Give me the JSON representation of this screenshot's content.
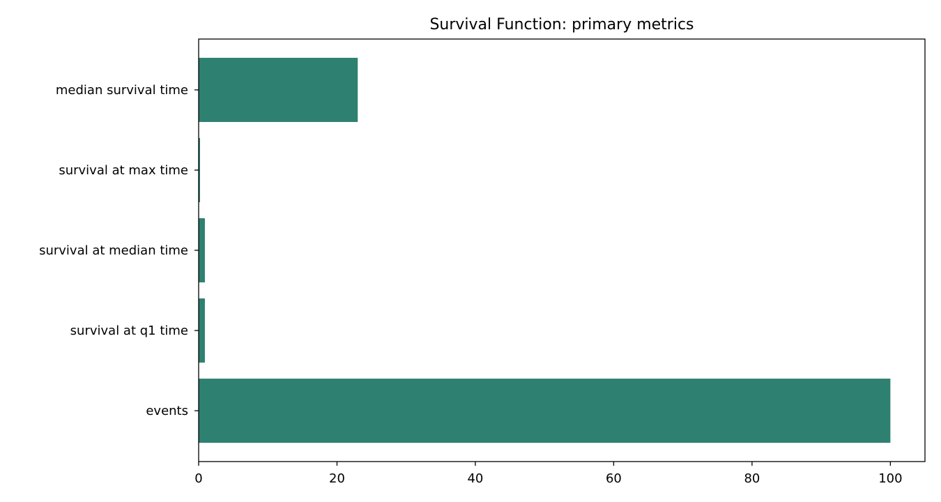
{
  "chart_data": {
    "type": "bar",
    "orientation": "horizontal",
    "title": "Survival Function: primary metrics",
    "xlabel": "",
    "ylabel": "",
    "categories": [
      "median survival time",
      "survival at max time",
      "survival at median time",
      "survival at q1 time",
      "events"
    ],
    "values": [
      23,
      0.2,
      0.9,
      0.9,
      100
    ],
    "xlim": [
      0,
      105
    ],
    "xticks": [
      0,
      20,
      40,
      60,
      80,
      100
    ],
    "grid": false,
    "legend": "none",
    "bar_color": "#2e8070"
  }
}
